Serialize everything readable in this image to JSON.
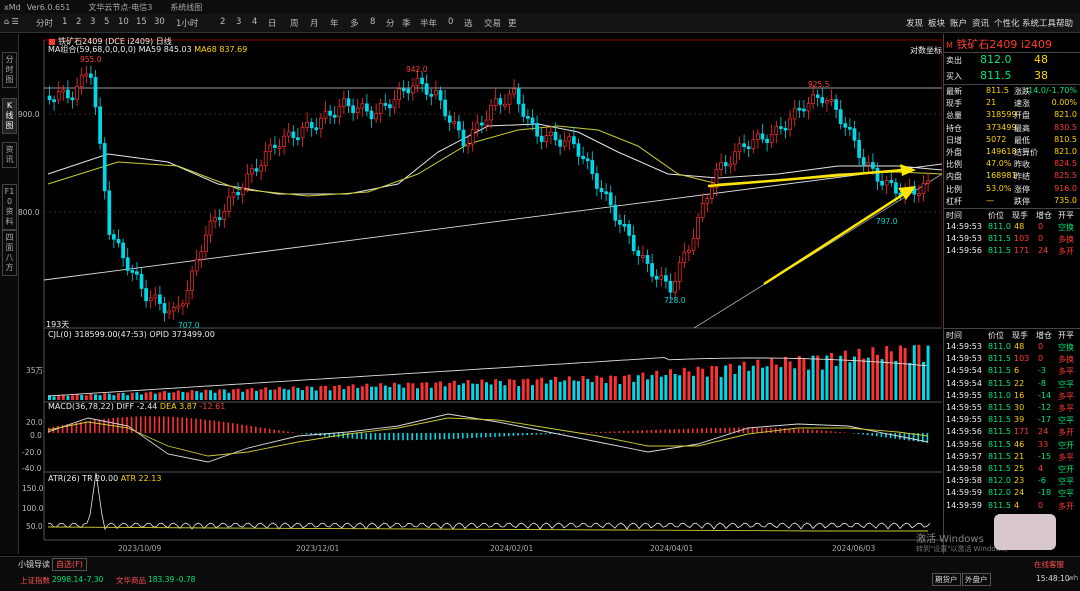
{
  "topbar": {
    "app": "xMd",
    "version": "Ver6.0.651",
    "broker": "文华云节点-电信3",
    "sys": "系统线图"
  },
  "periods": [
    "分时",
    "1",
    "2",
    "3",
    "5",
    "10",
    "15",
    "30",
    "1小时",
    "2",
    "3",
    "4",
    "日",
    "周",
    "月",
    "年",
    "多",
    "8",
    "分",
    "季",
    "半年",
    "0",
    "选",
    "交易",
    "更"
  ],
  "menus": [
    "发现",
    "板块",
    "账户",
    "资讯",
    "个性化",
    "系统工具",
    "帮助"
  ],
  "left_tabs": [
    "分时图",
    "K线图",
    "资讯",
    "F10资料",
    "四面八方"
  ],
  "chart_info": {
    "symbol": "铁矿石2409 (DCE i2409)",
    "period": "日线",
    "ma": "MA组合(59,68,0,0,0,0)",
    "ma59": "MA59 845.03",
    "ma68": "MA68 837.69",
    "bars": "193天",
    "compare": "对数坐标"
  },
  "price_labels": {
    "p955": "955.0",
    "p942": "942.0",
    "p925": "925.5",
    "p707": "707.0",
    "p728": "728.0",
    "p797": "797.0",
    "y900": "900.0",
    "y800": "800.0"
  },
  "cjl": {
    "label": "CJL(0)",
    "value": "318599.00(47:53)",
    "opid": "OPID 373499.00",
    "unit": "35万"
  },
  "macd": {
    "label": "MACD(36,78,22)",
    "diff": "DIFF -2.44",
    "dea": "DEA 3.87",
    "macd": "-12.61",
    "y1": "20.0",
    "y2": "0.0",
    "y3": "-20.0",
    "y4": "-40.0"
  },
  "atr": {
    "label": "ATR(26)",
    "tr": "TR 20.00",
    "atr": "ATR 22.13",
    "y1": "150.0",
    "y2": "100.0",
    "y3": "50.0"
  },
  "dates": [
    "2023/10/09",
    "2023/12/01",
    "2024/02/01",
    "2024/04/01",
    "2024/06/03"
  ],
  "quote": {
    "title": "铁矿石2409",
    "code": "i2409",
    "m": "M",
    "sell_label": "卖出",
    "sell": "812.0",
    "sell_vol": "48",
    "buy_label": "买入",
    "buy": "811.5",
    "buy_vol": "38",
    "rows": [
      [
        "最新",
        "811.5",
        "涨跌",
        "-14.0/-1.70%"
      ],
      [
        "现手",
        "21",
        "速涨",
        "0.00%"
      ],
      [
        "总量",
        "318599",
        "开盘",
        "821.0"
      ],
      [
        "持仓",
        "373499",
        "最高",
        "830.5"
      ],
      [
        "日增",
        "5072",
        "最低",
        "810.5"
      ],
      [
        "外盘",
        "149618",
        "结算价",
        "821.0"
      ],
      [
        "比例",
        "47.0%",
        "昨收",
        "824.5"
      ],
      [
        "内盘",
        "168981",
        "昨结",
        "825.5"
      ],
      [
        "比例",
        "53.0%",
        "涨停",
        "916.0"
      ],
      [
        "杠杆",
        "—",
        "跌停",
        "735.0"
      ]
    ],
    "tick_headers": [
      "时间",
      "价位",
      "现手",
      "增仓",
      "开平"
    ],
    "ticks1": [
      [
        "14:59:53",
        "811.0",
        "48",
        "0",
        "空换"
      ],
      [
        "14:59:53",
        "811.5",
        "103",
        "0",
        "多换"
      ],
      [
        "14:59:56",
        "811.5",
        "171",
        "24",
        "多开"
      ]
    ],
    "ticks2": [
      [
        "14:59:53",
        "811.0",
        "48",
        "0",
        "空换"
      ],
      [
        "14:59:53",
        "811.5",
        "103",
        "0",
        "多换"
      ],
      [
        "14:59:54",
        "811.5",
        "6",
        "-3",
        "多平"
      ],
      [
        "14:59:54",
        "811.5",
        "22",
        "-8",
        "空平"
      ],
      [
        "14:59:55",
        "811.0",
        "16",
        "-14",
        "多平"
      ],
      [
        "14:59:55",
        "811.5",
        "30",
        "-12",
        "多平"
      ],
      [
        "14:59:55",
        "811.5",
        "39",
        "-17",
        "空平"
      ],
      [
        "14:59:56",
        "811.5",
        "171",
        "24",
        "多开"
      ],
      [
        "14:59:56",
        "811.5",
        "46",
        "33",
        "空开"
      ],
      [
        "14:59:57",
        "811.5",
        "21",
        "-15",
        "多平"
      ],
      [
        "14:59:58",
        "811.5",
        "25",
        "4",
        "空开"
      ],
      [
        "14:59:58",
        "812.0",
        "23",
        "-6",
        "空平"
      ],
      [
        "14:59:59",
        "812.0",
        "24",
        "-18",
        "空平"
      ],
      [
        "14:59:59",
        "811.5",
        "4",
        "0",
        "多开"
      ]
    ]
  },
  "bottom": {
    "tab1": "小镜导读",
    "tab2": "自选(F)",
    "idx1_name": "上证指数",
    "idx1_val": "2998.14",
    "idx1_chg": "-7.30",
    "idx2_name": "文华商品",
    "idx2_val": "183.39",
    "idx2_chg": "-0.78",
    "watermark1": "激活 Windows",
    "watermark2": "转到\"设置\"以激活 Windows。",
    "btn1": "期货户",
    "btn2": "外盘户",
    "online": "在线客服",
    "time": "15:48:10",
    "unit": "wh"
  }
}
